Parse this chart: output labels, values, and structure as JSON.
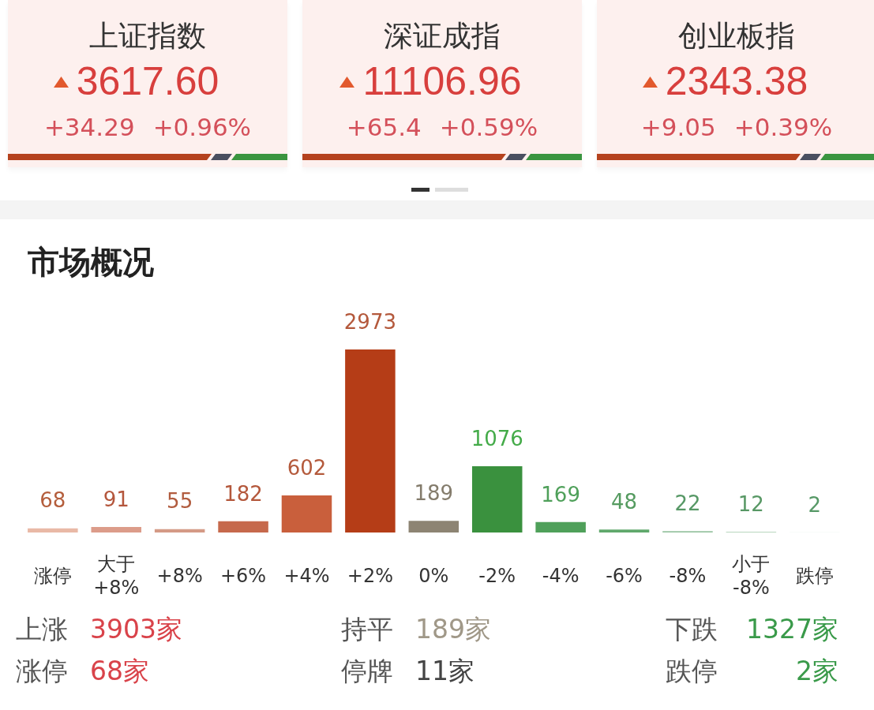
{
  "chart_data": [
    {
      "type": "other",
      "title": "上证指数",
      "annotations": [
        "3617.60",
        "+34.29",
        "+0.96%"
      ]
    },
    {
      "type": "other",
      "title": "深证成指",
      "annotations": [
        "11106.96",
        "+65.4",
        "+0.59%"
      ]
    },
    {
      "type": "other",
      "title": "创业板指",
      "annotations": [
        "2343.38",
        "+9.05",
        "+0.39%"
      ]
    },
    {
      "type": "bar",
      "title": "市场概况",
      "categories": [
        "涨停",
        "大于 +8%",
        "+8%",
        "+6%",
        "+4%",
        "+2%",
        "0%",
        "-2%",
        "-4%",
        "-6%",
        "-8%",
        "小于 -8%",
        "跌停"
      ],
      "values": [
        68,
        91,
        55,
        182,
        602,
        2973,
        189,
        1076,
        169,
        48,
        22,
        12,
        2
      ],
      "colors": [
        "#e9b9a6",
        "#dc9c8a",
        "#d49a86",
        "#c6694c",
        "#c95f3c",
        "#b53d17",
        "#8d8473",
        "#3a913e",
        "#4fa05a",
        "#60a86c",
        "#98c4a2",
        "#b8d6be",
        "#e3efe6"
      ],
      "data_labels": true
    },
    {
      "type": "other",
      "categories": [
        "上涨",
        "持平",
        "下跌",
        "涨停",
        "停牌",
        "跌停"
      ],
      "value_labels": [
        "3903家",
        "189家",
        "1327家",
        "68家",
        "11家",
        "2家"
      ],
      "colors": [
        "#d9434a",
        "#a09888",
        "#3a9a4a",
        "#d9434a",
        "#444444",
        "#3a9a4a"
      ]
    }
  ]
}
